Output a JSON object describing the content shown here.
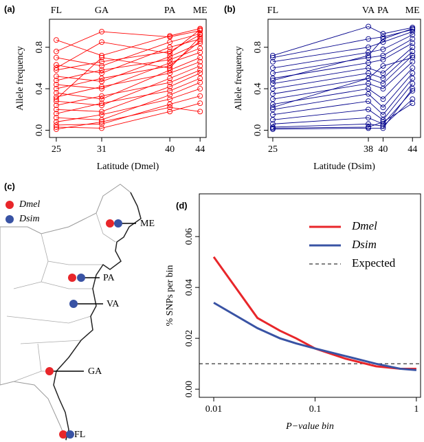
{
  "chart_data": [
    {
      "type": "line",
      "panel": "(a)",
      "xlabel": "Latitude (Dmel)",
      "ylabel": "Allele frequency",
      "color": "#ff0000",
      "sites": [
        "FL",
        "GA",
        "PA",
        "ME"
      ],
      "x": [
        25,
        31,
        40,
        44
      ],
      "xlim": [
        24.1,
        44.8
      ],
      "xticks": [
        25,
        31,
        40,
        44
      ],
      "ylim": [
        -0.07,
        1.07
      ],
      "yticks": [
        {
          "value": 0,
          "label": "0.0"
        },
        0.4,
        0.8
      ],
      "series": [
        {
          "values": [
            0.87,
            0.72,
            0.91,
            0.98
          ]
        },
        {
          "values": [
            0.76,
            0.95,
            0.9,
            0.96
          ]
        },
        {
          "values": [
            0.7,
            0.62,
            0.85,
            0.93
          ]
        },
        {
          "values": [
            0.63,
            0.55,
            0.8,
            0.88
          ]
        },
        {
          "values": [
            0.58,
            0.66,
            0.76,
            0.92
          ]
        },
        {
          "values": [
            0.52,
            0.47,
            0.71,
            0.84
          ]
        },
        {
          "values": [
            0.48,
            0.58,
            0.68,
            0.79
          ]
        },
        {
          "values": [
            0.44,
            0.4,
            0.65,
            0.75
          ]
        },
        {
          "values": [
            0.4,
            0.5,
            0.62,
            0.86
          ]
        },
        {
          "values": [
            0.36,
            0.3,
            0.58,
            0.7
          ]
        },
        {
          "values": [
            0.32,
            0.42,
            0.55,
            0.66
          ]
        },
        {
          "values": [
            0.28,
            0.24,
            0.5,
            0.62
          ]
        },
        {
          "values": [
            0.24,
            0.33,
            0.46,
            0.58
          ]
        },
        {
          "values": [
            0.2,
            0.18,
            0.42,
            0.55
          ]
        },
        {
          "values": [
            0.16,
            0.26,
            0.38,
            0.5
          ]
        },
        {
          "values": [
            0.12,
            0.1,
            0.34,
            0.46
          ]
        },
        {
          "values": [
            0.08,
            0.15,
            0.3,
            0.4
          ]
        },
        {
          "values": [
            0.05,
            0.06,
            0.25,
            0.33
          ]
        },
        {
          "values": [
            0.03,
            0.02,
            0.18,
            0.26
          ]
        },
        {
          "values": [
            0.01,
            0.08,
            0.22,
            0.18
          ]
        },
        {
          "values": [
            0.6,
            0.85,
            0.74,
            0.97
          ]
        },
        {
          "values": [
            0.3,
            0.7,
            0.6,
            0.9
          ]
        }
      ]
    },
    {
      "type": "line",
      "panel": "(b)",
      "xlabel": "Latitude (Dsim)",
      "ylabel": "Allele frequency",
      "color": "#00008b",
      "sites": [
        "FL",
        "VA",
        "PA",
        "ME"
      ],
      "x": [
        25,
        38,
        40,
        44
      ],
      "xlim": [
        24.35,
        45.1
      ],
      "xticks": [
        25,
        38,
        40,
        44
      ],
      "ylim": [
        -0.07,
        1.07
      ],
      "yticks": [
        {
          "value": 0,
          "label": "0.0"
        },
        0.4,
        0.8
      ],
      "series": [
        {
          "values": [
            0.72,
            1.0,
            0.93,
            0.99
          ]
        },
        {
          "values": [
            0.7,
            0.88,
            0.9,
            0.97
          ]
        },
        {
          "values": [
            0.66,
            0.8,
            0.85,
            0.95
          ]
        },
        {
          "values": [
            0.6,
            0.75,
            0.78,
            0.92
          ]
        },
        {
          "values": [
            0.55,
            0.7,
            0.72,
            0.88
          ]
        },
        {
          "values": [
            0.5,
            0.65,
            0.68,
            0.84
          ]
        },
        {
          "values": [
            0.45,
            0.6,
            0.55,
            0.8
          ]
        },
        {
          "values": [
            0.4,
            0.55,
            0.5,
            0.76
          ]
        },
        {
          "values": [
            0.35,
            0.5,
            0.45,
            0.72
          ]
        },
        {
          "values": [
            0.3,
            0.45,
            0.4,
            0.66
          ]
        },
        {
          "values": [
            0.25,
            0.4,
            0.3,
            0.6
          ]
        },
        {
          "values": [
            0.2,
            0.35,
            0.22,
            0.55
          ]
        },
        {
          "values": [
            0.15,
            0.28,
            0.15,
            0.5
          ]
        },
        {
          "values": [
            0.1,
            0.2,
            0.1,
            0.45
          ]
        },
        {
          "values": [
            0.06,
            0.12,
            0.06,
            0.38
          ]
        },
        {
          "values": [
            0.03,
            0.06,
            0.04,
            0.3
          ]
        },
        {
          "values": [
            0.02,
            0.03,
            0.08,
            0.26
          ]
        },
        {
          "values": [
            0.01,
            0.02,
            0.02,
            0.4
          ]
        },
        {
          "values": [
            0.48,
            0.72,
            0.88,
            0.98
          ]
        },
        {
          "values": [
            0.22,
            0.5,
            0.62,
            0.7
          ]
        }
      ]
    },
    {
      "type": "line",
      "panel": "(d)",
      "xlabel": "P−value bin",
      "ylabel": "% SNPs per bin",
      "log_x": true,
      "x": [
        0.01,
        0.027,
        0.045,
        0.065,
        0.1,
        0.2,
        0.4,
        0.7,
        1
      ],
      "xlim": [
        0.0072,
        1.1
      ],
      "xticks": [
        0.01,
        0.1,
        1
      ],
      "ylim": [
        -0.0032,
        0.0768
      ],
      "yticks": [
        {
          "value": 0,
          "label": "0.00"
        },
        {
          "value": 0.02,
          "label": "0.02"
        },
        {
          "value": 0.04,
          "label": "0.04"
        },
        {
          "value": 0.06,
          "label": "0.06"
        }
      ],
      "series": [
        {
          "name": "Dmel",
          "color": "#e8262a",
          "values": [
            0.052,
            0.028,
            0.023,
            0.02,
            0.016,
            0.012,
            0.009,
            0.008,
            0.008
          ]
        },
        {
          "name": "Dsim",
          "color": "#3953a4",
          "values": [
            0.034,
            0.024,
            0.02,
            0.018,
            0.016,
            0.013,
            0.01,
            0.008,
            0.0075
          ]
        }
      ],
      "reference_line": {
        "name": "Expected",
        "value": 0.01,
        "color": "#000000"
      },
      "legend": "top-right"
    }
  ],
  "map": {
    "panel": "(c)",
    "legend": [
      "Dmel",
      "Dsim"
    ],
    "sites": [
      "ME",
      "PA",
      "VA",
      "GA",
      "FL"
    ]
  }
}
